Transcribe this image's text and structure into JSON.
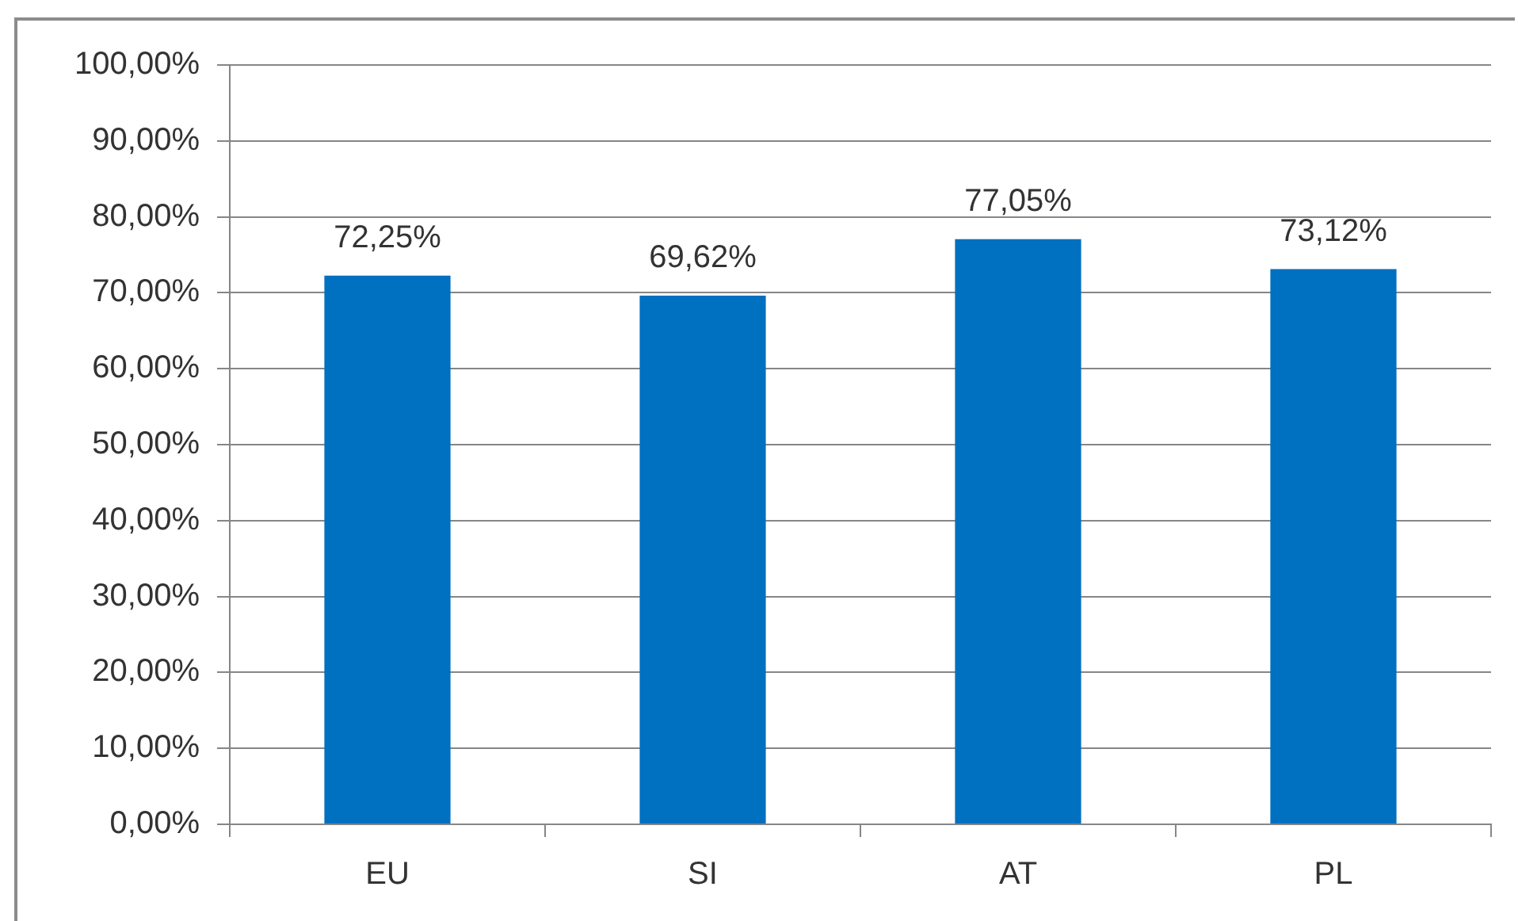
{
  "chart_data": {
    "type": "bar",
    "categories": [
      "EU",
      "SI",
      "AT",
      "PL"
    ],
    "values": [
      72.25,
      69.62,
      77.05,
      73.12
    ],
    "color": "#0070c0",
    "value_labels": [
      "72,25%",
      "69,62%",
      "77,05%",
      "73,12%"
    ],
    "ylim": [
      0,
      100
    ],
    "yticks": [
      {
        "value": 0,
        "label": "0,00%"
      },
      {
        "value": 10,
        "label": "10,00%"
      },
      {
        "value": 20,
        "label": "20,00%"
      },
      {
        "value": 30,
        "label": "30,00%"
      },
      {
        "value": 40,
        "label": "40,00%"
      },
      {
        "value": 50,
        "label": "50,00%"
      },
      {
        "value": 60,
        "label": "60,00%"
      },
      {
        "value": 70,
        "label": "70,00%"
      },
      {
        "value": 80,
        "label": "80,00%"
      },
      {
        "value": 90,
        "label": "90,00%"
      },
      {
        "value": 100,
        "label": "100,00%"
      }
    ],
    "grid": "y"
  }
}
